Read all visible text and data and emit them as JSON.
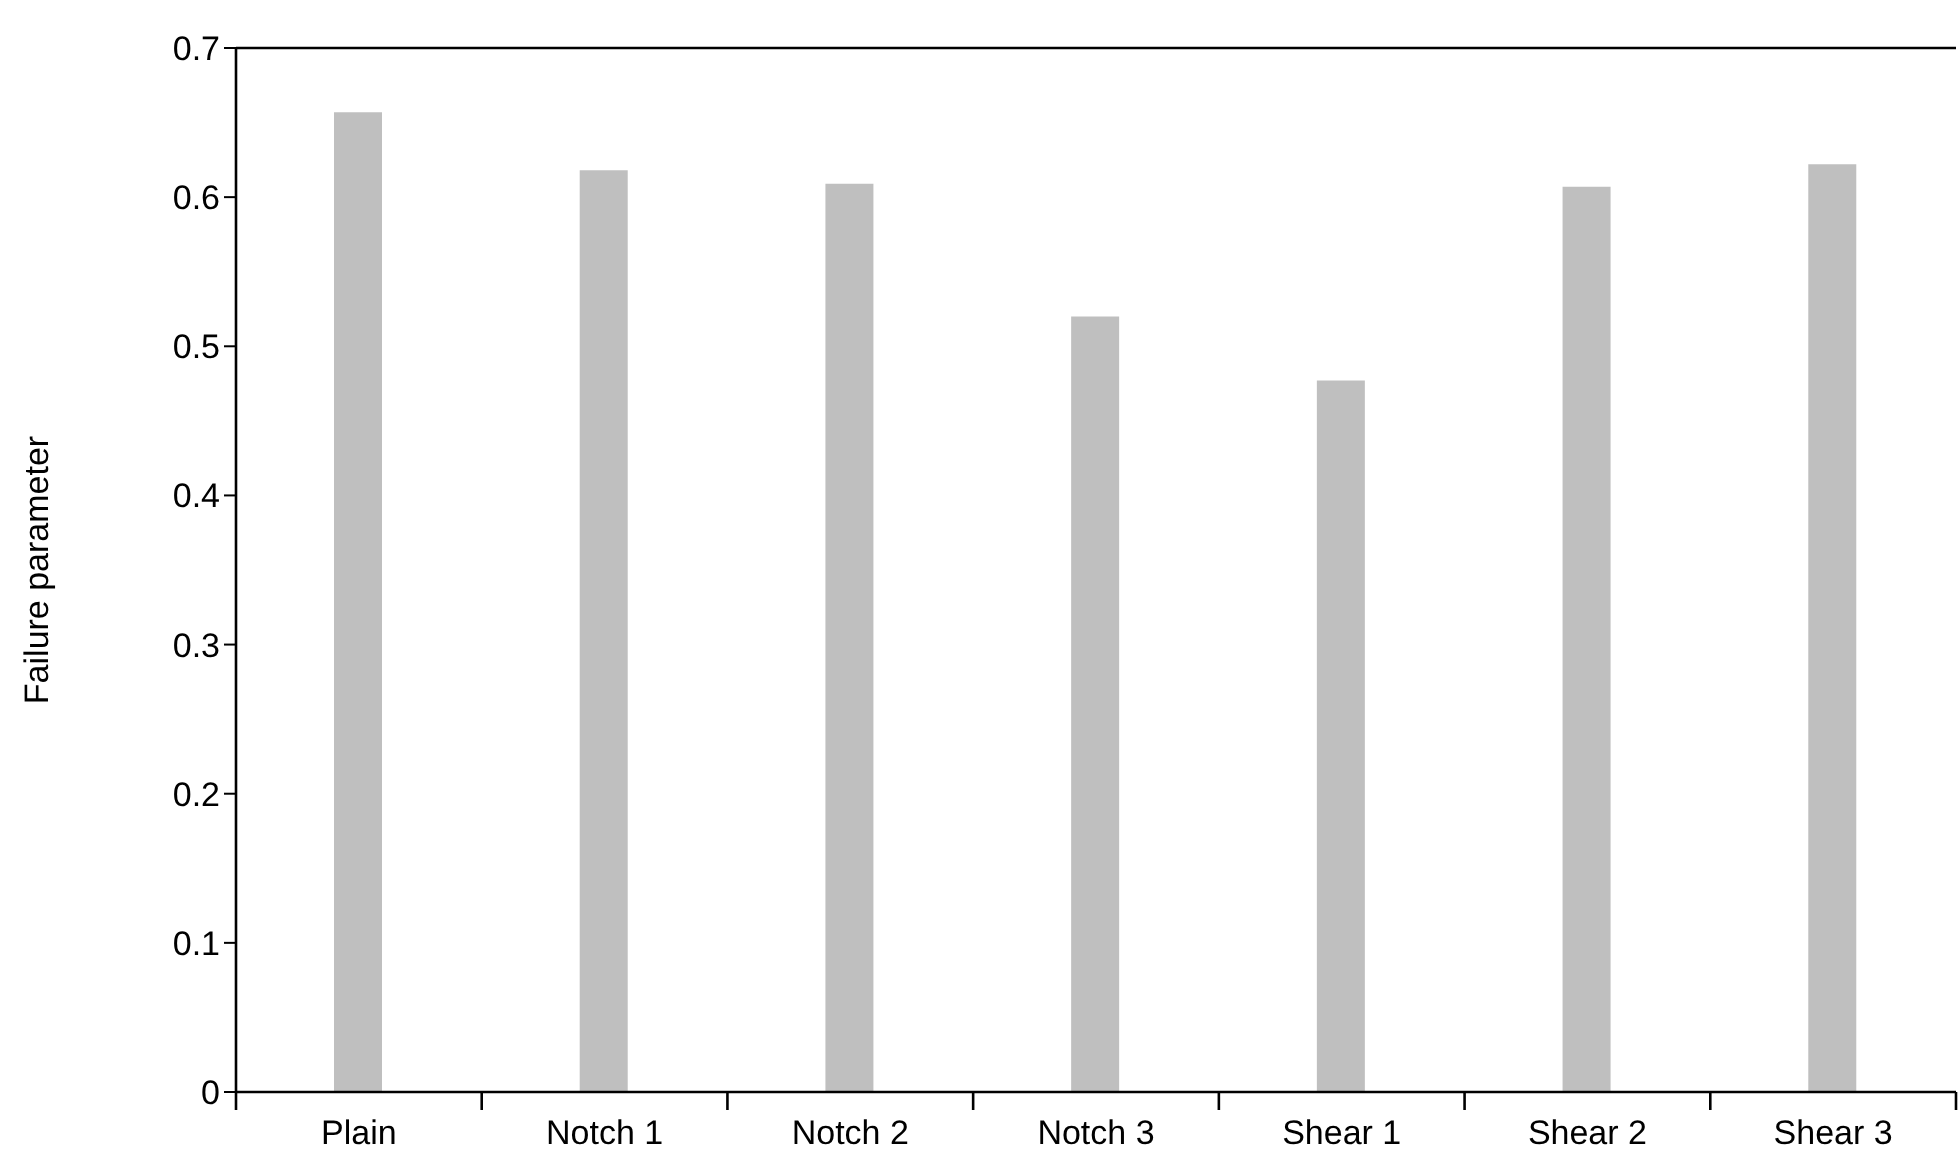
{
  "chart_data": {
    "type": "bar",
    "ylabel": "Failure parameter",
    "categories": [
      "Plain",
      "Notch 1",
      "Notch 2",
      "Notch 3",
      "Shear 1",
      "Shear 2",
      "Shear 3"
    ],
    "values": [
      0.657,
      0.618,
      0.609,
      0.52,
      0.477,
      0.607,
      0.622
    ],
    "color": "#bfbfbf",
    "ylim": [
      0,
      0.7
    ],
    "yticks": [
      0,
      0.1,
      0.2,
      0.3,
      0.4,
      0.5,
      0.6,
      0.7
    ],
    "grid": false
  }
}
